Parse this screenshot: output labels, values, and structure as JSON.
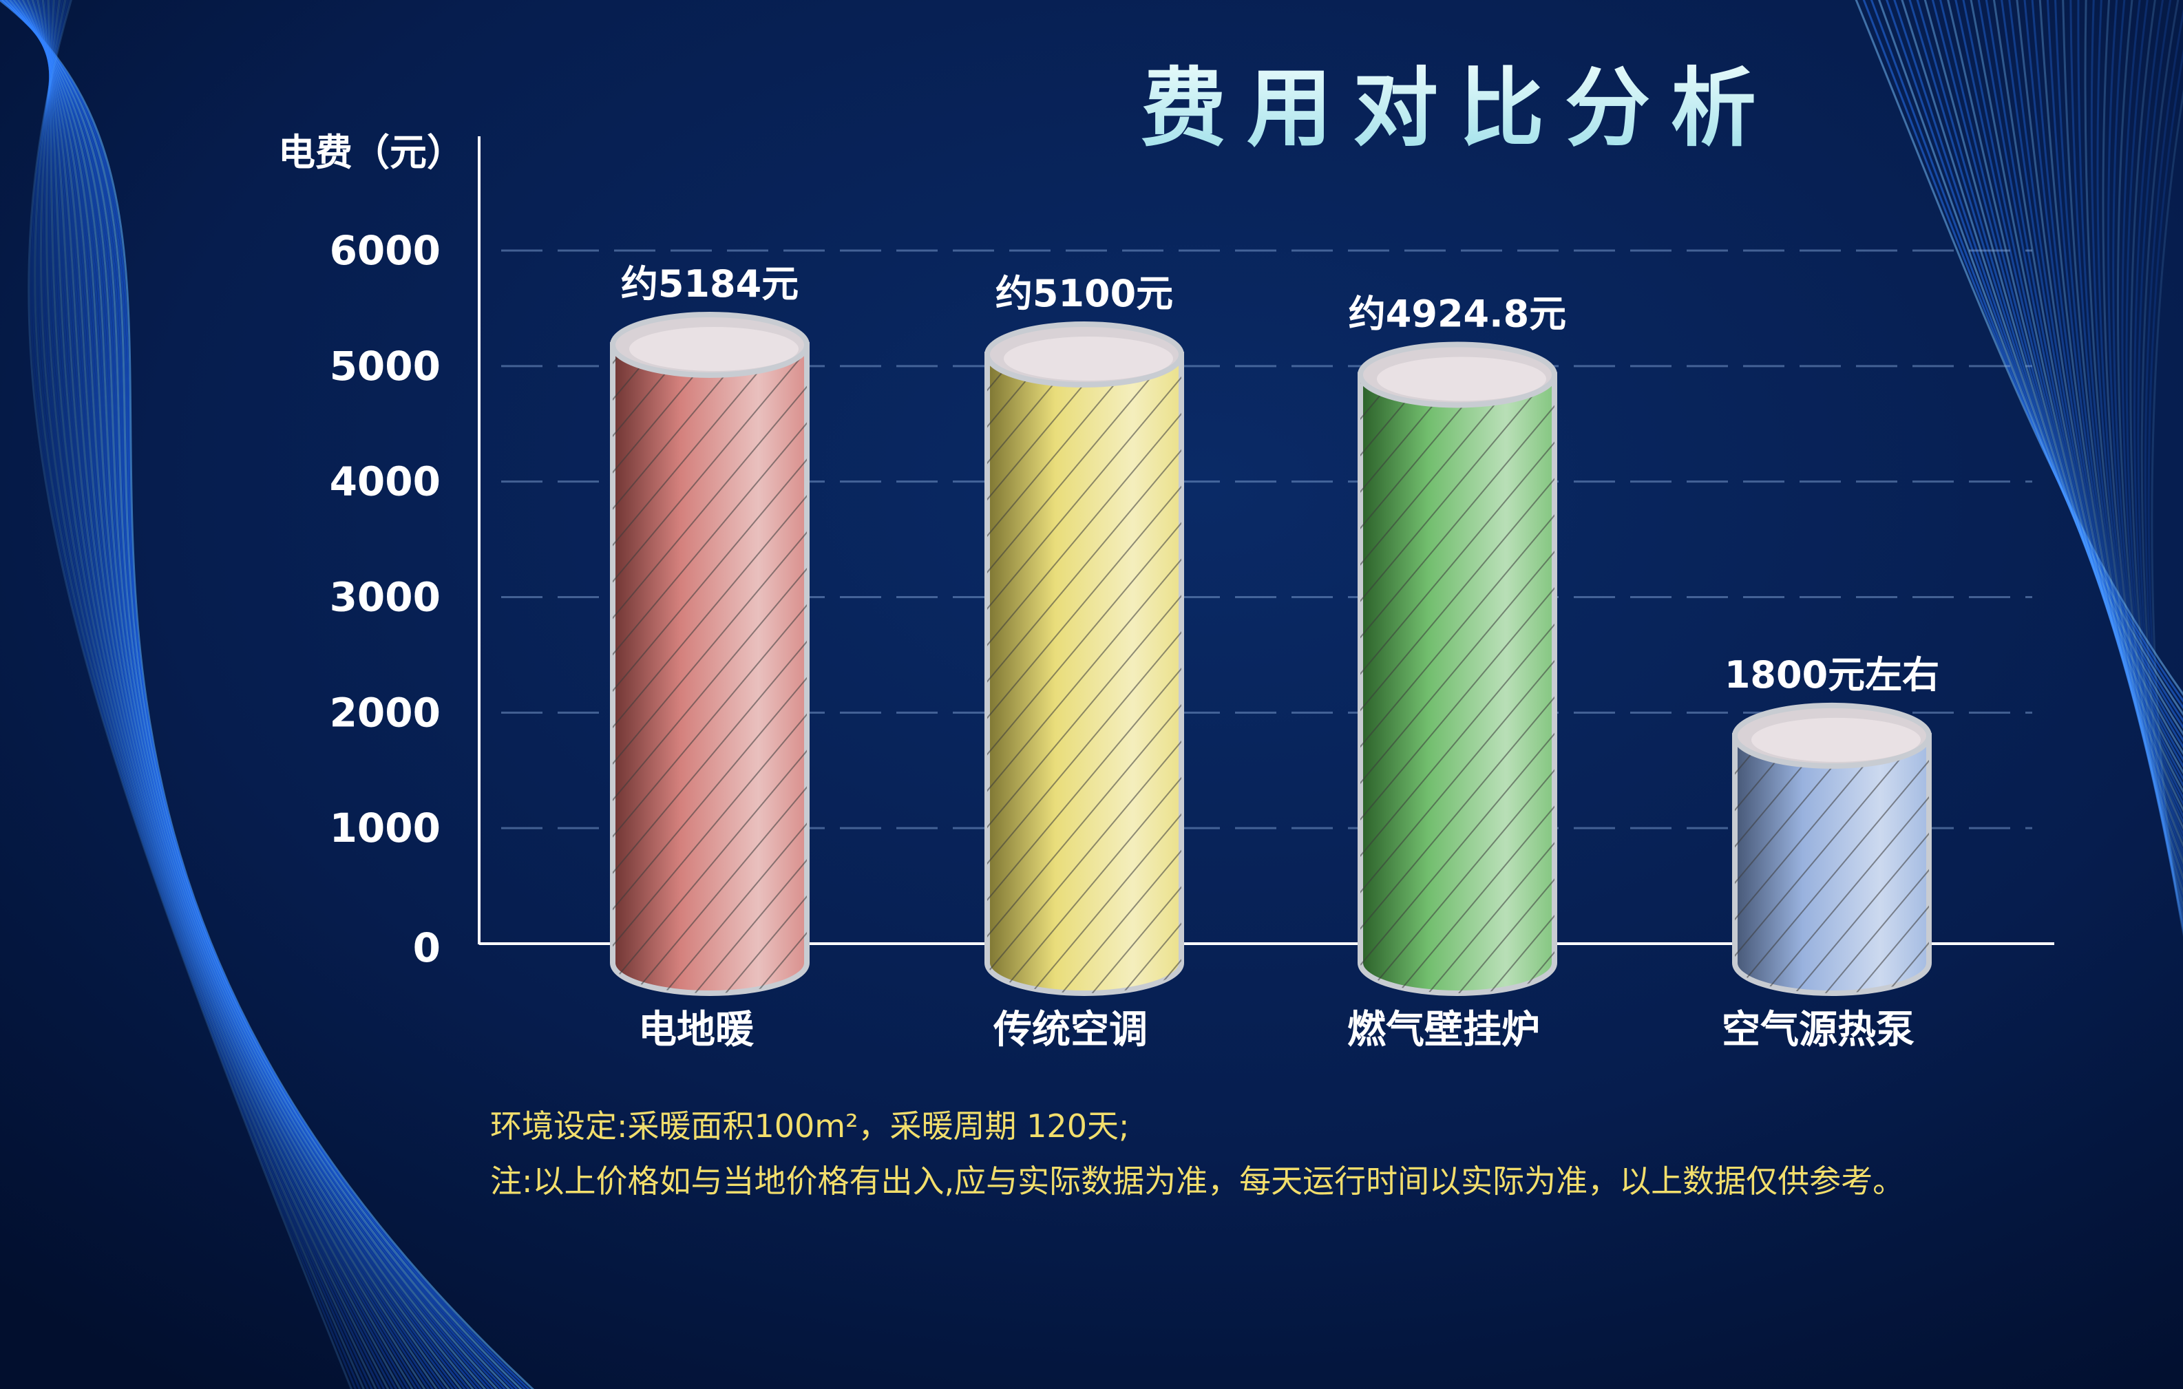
{
  "chart_data": {
    "type": "bar",
    "title": "费用对比分析",
    "ylabel": "电费（元）",
    "xlabel": "",
    "ylim": [
      0,
      6000
    ],
    "yticks": [
      0,
      1000,
      2000,
      3000,
      4000,
      5000,
      6000
    ],
    "grid": true,
    "categories": [
      "电地暖",
      "传统空调",
      "燃气壁挂炉",
      "空气源热泵"
    ],
    "values": [
      5184,
      5100,
      4924.8,
      1800
    ],
    "data_labels": [
      "约5184元",
      "约5100元",
      "约4924.8元",
      "1800元左右"
    ],
    "colors": [
      "#c9615c",
      "#e3d45a",
      "#4fae4a",
      "#7f9fd6"
    ]
  },
  "notes": {
    "line1": "环境设定:采暖面积100m²，采暖周期 120天;",
    "line2": "注:以上价格如与当地价格有出入,应与实际数据为准，每天运行时间以实际为准，以上数据仅供参考。"
  }
}
